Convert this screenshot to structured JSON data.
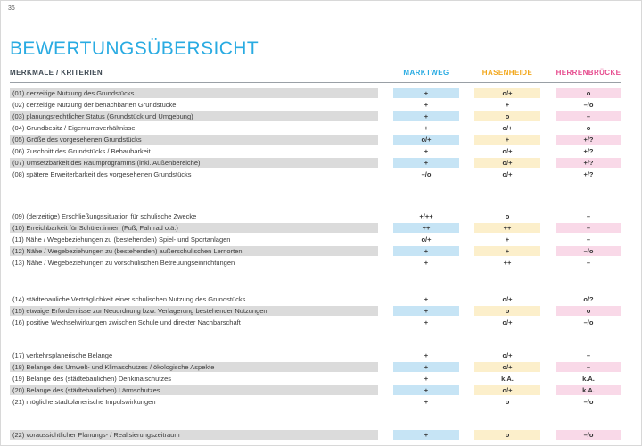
{
  "page_number": "36",
  "title": "BEWERTUNGSÜBERSICHT",
  "table": {
    "criteria_header": "MERKMALE / KRITERIEN",
    "columns": [
      {
        "label": "MARKTWEG",
        "color": "#29ABE2",
        "cell_bg": "#C6E4F5"
      },
      {
        "label": "HASENHEIDE",
        "color": "#F2A71B",
        "cell_bg": "#FCEFCB"
      },
      {
        "label": "HERRENBRÜCKE",
        "color": "#E64A8D",
        "cell_bg": "#F9D9E8"
      }
    ],
    "rating_symbols": [
      "++",
      "+",
      "o/+",
      "o",
      "–/o",
      "–",
      "+/?",
      "o/?",
      "+/++",
      "k.A."
    ],
    "sections": [
      {
        "rows": [
          {
            "num": "(01)",
            "label": "derzeitige Nutzung des Grundstücks",
            "values": [
              "+",
              "o/+",
              "o"
            ],
            "shaded": true
          },
          {
            "num": "(02)",
            "label": "derzeitige Nutzung der benachbarten Grundstücke",
            "values": [
              "+",
              "+",
              "–/o"
            ],
            "shaded": false
          },
          {
            "num": "(03)",
            "label": "planungsrechtlicher Status (Grundstück und Umgebung)",
            "values": [
              "+",
              "o",
              "–"
            ],
            "shaded": true
          },
          {
            "num": "(04)",
            "label": "Grundbesitz / Eigentumsverhältnisse",
            "values": [
              "+",
              "o/+",
              "o"
            ],
            "shaded": false
          },
          {
            "num": "(05)",
            "label": "Größe des vorgesehenen Grundstücks",
            "values": [
              "o/+",
              "+",
              "+/?"
            ],
            "shaded": true
          },
          {
            "num": "(06)",
            "label": "Zuschnitt des Grundstücks / Bebaubarkeit",
            "values": [
              "+",
              "o/+",
              "+/?"
            ],
            "shaded": false
          },
          {
            "num": "(07)",
            "label": "Umsetzbarkeit des Raumprogramms (inkl. Außenbereiche)",
            "values": [
              "+",
              "o/+",
              "+/?"
            ],
            "shaded": true
          },
          {
            "num": "(08)",
            "label": "spätere Erweiterbarkeit des vorgesehenen Grundstücks",
            "values": [
              "–/o",
              "o/+",
              "+/?"
            ],
            "shaded": false
          }
        ]
      },
      {
        "rows": [
          {
            "num": "(09)",
            "label": "(derzeitige) Erschließungssituation für schulische Zwecke",
            "values": [
              "+/++",
              "o",
              "–"
            ],
            "shaded": false
          },
          {
            "num": "(10)",
            "label": "Erreichbarkeit für Schüler:innen (Fuß, Fahrrad o.ä.)",
            "values": [
              "++",
              "++",
              "–"
            ],
            "shaded": true
          },
          {
            "num": "(11)",
            "label": "Nähe / Wegebeziehungen zu (bestehenden) Spiel- und Sportanlagen",
            "values": [
              "o/+",
              "+",
              "–"
            ],
            "shaded": false
          },
          {
            "num": "(12)",
            "label": "Nähe / Wegebeziehungen zu (bestehenden) außerschulischen Lernorten",
            "values": [
              "+",
              "+",
              "–/o"
            ],
            "shaded": true
          },
          {
            "num": "(13)",
            "label": "Nähe / Wegebeziehungen zu vorschulischen Betreuungseinrichtungen",
            "values": [
              "+",
              "++",
              "–"
            ],
            "shaded": false
          }
        ]
      },
      {
        "rows": [
          {
            "num": "(14)",
            "label": "städtebauliche Verträglichkeit einer schulischen Nutzung des Grundstücks",
            "values": [
              "+",
              "o/+",
              "o/?"
            ],
            "shaded": false
          },
          {
            "num": "(15)",
            "label": "etwaige Erfordernisse zur Neuordnung bzw. Verlagerung bestehender Nutzungen",
            "values": [
              "+",
              "o",
              "o"
            ],
            "shaded": true
          },
          {
            "num": "(16)",
            "label": "positive Wechselwirkungen zwischen Schule und direkter Nachbarschaft",
            "values": [
              "+",
              "o/+",
              "–/o"
            ],
            "shaded": false
          }
        ]
      },
      {
        "rows": [
          {
            "num": "(17)",
            "label": "verkehrsplanerische Belange",
            "values": [
              "+",
              "o/+",
              "–"
            ],
            "shaded": false
          },
          {
            "num": "(18)",
            "label": "Belange des Umwelt- und Klimaschutzes / ökologische Aspekte",
            "values": [
              "+",
              "o/+",
              "–"
            ],
            "shaded": true
          },
          {
            "num": "(19)",
            "label": "Belange des (städtebaulichen) Denkmalschutzes",
            "values": [
              "+",
              "k.A.",
              "k.A."
            ],
            "shaded": false
          },
          {
            "num": "(20)",
            "label": "Belange des (städtebaulichen) Lärmschutzes",
            "values": [
              "+",
              "o/+",
              "k.A."
            ],
            "shaded": true
          },
          {
            "num": "(21)",
            "label": "mögliche stadtplanerische Impulswirkungen",
            "values": [
              "+",
              "o",
              "–/o"
            ],
            "shaded": false
          }
        ]
      },
      {
        "rows": [
          {
            "num": "(22)",
            "label": "voraussichtlicher Planungs- / Realisierungszeitraum",
            "values": [
              "+",
              "o",
              "–/o"
            ],
            "shaded": true
          }
        ]
      }
    ]
  }
}
